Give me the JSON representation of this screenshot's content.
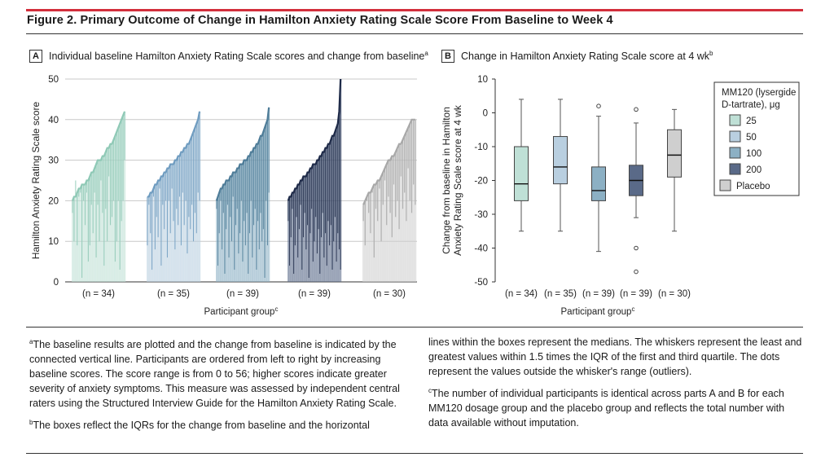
{
  "figure": {
    "title": "Figure 2. Primary Outcome of Change in Hamilton Anxiety Rating Scale Score From Baseline to Week 4"
  },
  "panelA": {
    "letter": "A",
    "title": "Individual baseline Hamilton Anxiety Rating Scale scores and change from baseline",
    "title_sup": "a"
  },
  "panelB": {
    "letter": "B",
    "title": "Change in Hamilton Anxiety Rating Scale score at 4 wk",
    "title_sup": "b"
  },
  "footnotes": {
    "a": "The baseline results are plotted and the change from baseline is indicated by the connected vertical line. Participants are ordered from left to right by increasing baseline scores. The score range is from 0 to 56; higher scores indicate greater severity of anxiety symptoms. This measure was assessed by independent central raters using the Structured Interview Guide for the Hamilton Anxiety Rating Scale.",
    "b": "The boxes reflect the IQRs for the change from baseline and the horizontal lines within the boxes represent the medians. The whiskers represent the least and greatest values within 1.5 times the IQR of the first and third quartile. The dots represent the values outside the whisker's range (outliers).",
    "c": "The number of individual participants is identical across parts A and B for each MM120 dosage group and the placebo group and reflects the total number with data available without imputation."
  },
  "colors": {
    "g25": "#bfe0d6",
    "g25_line": "#8fc9b6",
    "g50": "#b9cfe0",
    "g50_line": "#6f9cc0",
    "g100": "#8cb0c4",
    "g100_line": "#4e7c98",
    "g200": "#5a6a88",
    "g200_line": "#1e2a48",
    "placebo": "#cfcfcf",
    "placebo_line": "#a8a8a8",
    "accent": "#d32f3c"
  },
  "chart_data": [
    {
      "type": "bar",
      "title": "Individual baseline Hamilton Anxiety Rating Scale scores and change from baseline",
      "xlabel": "Participant group",
      "xlabel_sup": "c",
      "ylabel": "Hamilton Anxiety Rating Scale score",
      "ylim": [
        0,
        50
      ],
      "yticks": [
        0,
        10,
        20,
        30,
        40,
        50
      ],
      "grid": true,
      "groups": [
        {
          "name": "25",
          "n_label": "(n = 34)",
          "baseline": [
            20,
            21,
            21,
            22,
            23,
            23,
            24,
            24,
            24,
            25,
            25,
            26,
            27,
            27,
            28,
            29,
            30,
            30,
            30,
            31,
            31,
            32,
            33,
            33,
            34,
            34,
            35,
            36,
            37,
            38,
            39,
            40,
            41,
            42
          ],
          "endpoint": [
            17,
            10,
            25,
            9,
            21,
            22,
            1,
            20,
            14,
            22,
            5,
            9,
            19,
            12,
            22,
            6,
            19,
            10,
            25,
            17,
            4,
            18,
            10,
            26,
            14,
            16,
            20,
            5,
            10,
            20,
            3,
            15,
            20,
            30
          ]
        },
        {
          "name": "50",
          "n_label": "(n = 35)",
          "baseline": [
            21,
            21,
            22,
            22,
            23,
            24,
            24,
            25,
            25,
            26,
            26,
            27,
            27,
            28,
            28,
            29,
            29,
            29,
            30,
            30,
            31,
            31,
            32,
            32,
            33,
            33,
            34,
            34,
            35,
            36,
            37,
            38,
            39,
            40,
            42
          ],
          "endpoint": [
            9,
            19,
            12,
            3,
            21,
            8,
            16,
            11,
            23,
            4,
            19,
            13,
            20,
            6,
            20,
            12,
            23,
            15,
            8,
            18,
            14,
            21,
            9,
            22,
            14,
            20,
            7,
            16,
            13,
            19,
            10,
            17,
            12,
            22,
            20
          ]
        },
        {
          "name": "100",
          "n_label": "(n = 39)",
          "baseline": [
            20,
            21,
            22,
            23,
            23,
            24,
            24,
            25,
            25,
            25,
            26,
            26,
            27,
            27,
            27,
            28,
            28,
            29,
            29,
            29,
            30,
            30,
            30,
            31,
            31,
            32,
            32,
            33,
            33,
            34,
            34,
            35,
            36,
            36,
            37,
            38,
            39,
            40,
            43
          ],
          "endpoint": [
            18,
            4,
            12,
            20,
            8,
            17,
            2,
            13,
            19,
            6,
            16,
            10,
            21,
            3,
            14,
            18,
            7,
            12,
            20,
            5,
            15,
            9,
            17,
            2,
            12,
            20,
            6,
            14,
            18,
            3,
            15,
            8,
            17,
            10,
            13,
            1,
            20,
            9,
            22
          ]
        },
        {
          "name": "200",
          "n_label": "(n = 39)",
          "baseline": [
            20,
            21,
            21,
            22,
            22,
            23,
            23,
            24,
            24,
            25,
            25,
            26,
            26,
            26,
            27,
            27,
            28,
            28,
            29,
            29,
            29,
            30,
            30,
            31,
            31,
            32,
            32,
            33,
            33,
            34,
            34,
            35,
            36,
            36,
            37,
            38,
            39,
            42,
            50
          ],
          "endpoint": [
            15,
            4,
            11,
            18,
            2,
            9,
            16,
            6,
            13,
            19,
            3,
            11,
            17,
            8,
            14,
            1,
            12,
            18,
            5,
            10,
            16,
            7,
            13,
            2,
            11,
            17,
            6,
            12,
            4,
            15,
            9,
            14,
            3,
            10,
            16,
            5,
            12,
            8,
            3
          ]
        },
        {
          "name": "Placebo",
          "n_label": "(n = 30)",
          "baseline": [
            19,
            20,
            21,
            22,
            22,
            23,
            24,
            24,
            25,
            25,
            26,
            27,
            28,
            29,
            30,
            30,
            31,
            31,
            32,
            33,
            34,
            34,
            35,
            36,
            37,
            38,
            39,
            40,
            40,
            40
          ],
          "endpoint": [
            15,
            9,
            20,
            17,
            12,
            22,
            6,
            18,
            15,
            23,
            10,
            19,
            25,
            14,
            21,
            17,
            11,
            24,
            16,
            20,
            13,
            26,
            18,
            22,
            15,
            28,
            20,
            17,
            24,
            19
          ]
        }
      ]
    },
    {
      "type": "box",
      "title": "Change in Hamilton Anxiety Rating Scale score at 4 wk",
      "xlabel": "Participant group",
      "xlabel_sup": "c",
      "ylabel": "Change from baseline in Hamilton Anxiety Rating Scale score at 4 wk",
      "ylabel_lines": [
        "Change from baseline in Hamilton",
        "Anxiety Rating Scale score at 4 wk"
      ],
      "ylim": [
        -50,
        10
      ],
      "yticks": [
        -50,
        -40,
        -30,
        -20,
        -10,
        0,
        10
      ],
      "legend": {
        "title_lines": [
          "MM120 (lysergide",
          "D-tartrate), μg"
        ],
        "entries": [
          "25",
          "50",
          "100",
          "200",
          "Placebo"
        ],
        "placement": "right"
      },
      "series": [
        {
          "name": "25",
          "n_label": "(n = 34)",
          "whisker_low": -35,
          "q1": -26,
          "median": -21,
          "q3": -10,
          "whisker_high": 4,
          "outliers": []
        },
        {
          "name": "50",
          "n_label": "(n = 35)",
          "whisker_low": -35,
          "q1": -21,
          "median": -16,
          "q3": -7,
          "whisker_high": 4,
          "outliers": []
        },
        {
          "name": "100",
          "n_label": "(n = 39)",
          "whisker_low": -41,
          "q1": -26,
          "median": -23,
          "q3": -16,
          "whisker_high": -1,
          "outliers": [
            2
          ]
        },
        {
          "name": "200",
          "n_label": "(n = 39)",
          "whisker_low": -31,
          "q1": -24.5,
          "median": -20,
          "q3": -15.5,
          "whisker_high": -3,
          "outliers": [
            1,
            -40,
            -47
          ]
        },
        {
          "name": "Placebo",
          "n_label": "(n = 30)",
          "whisker_low": -35,
          "q1": -19,
          "median": -12.5,
          "q3": -5,
          "whisker_high": 1,
          "outliers": []
        }
      ]
    }
  ]
}
